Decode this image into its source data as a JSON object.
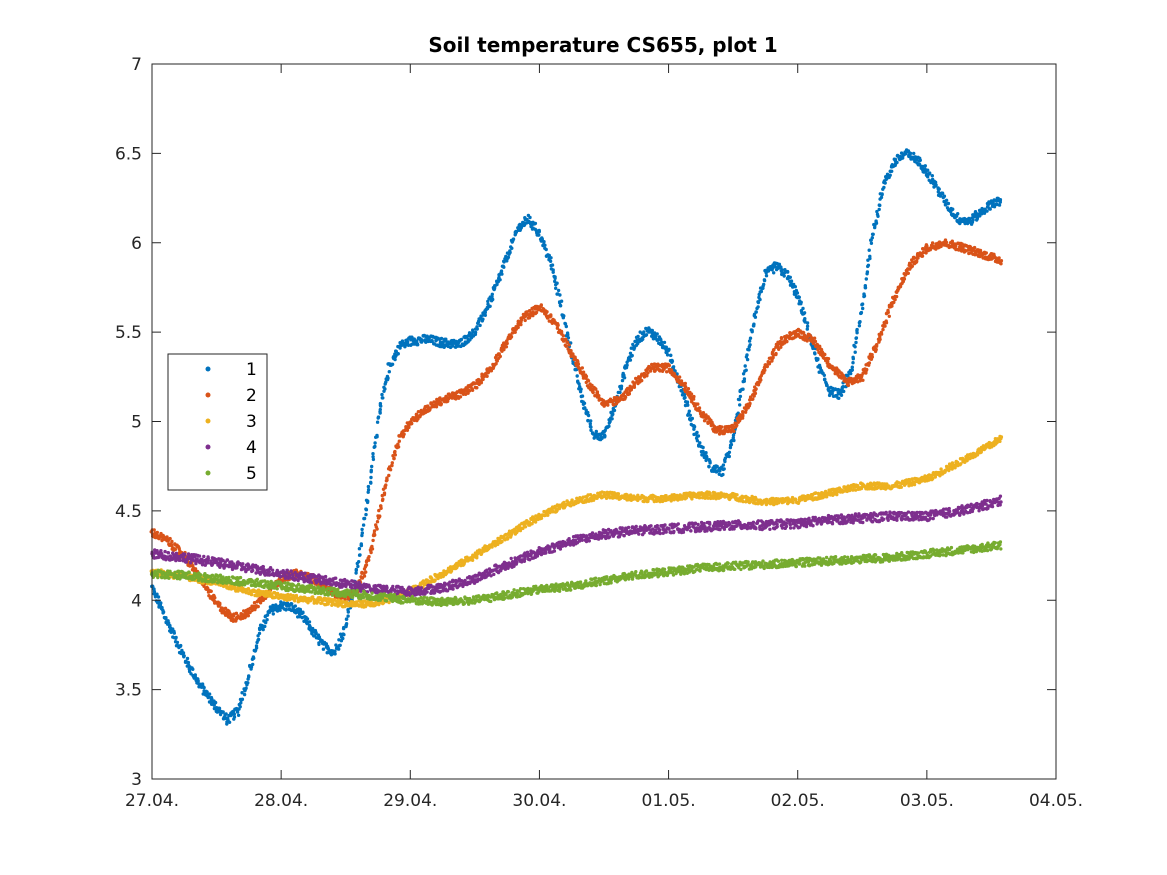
{
  "chart_data": {
    "type": "scatter",
    "title": "Soil temperature CS655, plot 1",
    "xlabel": "",
    "ylabel": "",
    "x_axis": {
      "kind": "date",
      "range": [
        "27.04.",
        "04.05."
      ],
      "tick_labels": [
        "27.04.",
        "28.04.",
        "29.04.",
        "30.04.",
        "01.05.",
        "02.05.",
        "03.05.",
        "04.05."
      ]
    },
    "y_axis": {
      "range": [
        3,
        7
      ],
      "tick_labels": [
        "3",
        "3.5",
        "4",
        "4.5",
        "5",
        "5.5",
        "6",
        "6.5",
        "7"
      ]
    },
    "grid": false,
    "legend": {
      "placement": "left",
      "entries": [
        "1",
        "2",
        "3",
        "4",
        "5"
      ]
    },
    "series": [
      {
        "name": "1",
        "color": "#0072BD",
        "points": [
          [
            "27.04. 00:00",
            4.07
          ],
          [
            "27.04. 03:00",
            3.87
          ],
          [
            "27.04. 06:00",
            3.68
          ],
          [
            "27.04. 09:00",
            3.52
          ],
          [
            "27.04. 12:00",
            3.4
          ],
          [
            "27.04. 14:00",
            3.33
          ],
          [
            "27.04. 16:00",
            3.38
          ],
          [
            "27.04. 18:00",
            3.58
          ],
          [
            "27.04. 20:00",
            3.82
          ],
          [
            "27.04. 22:00",
            3.94
          ],
          [
            "28.04. 00:00",
            3.97
          ],
          [
            "28.04. 02:00",
            3.96
          ],
          [
            "28.04. 04:00",
            3.91
          ],
          [
            "28.04. 06:00",
            3.82
          ],
          [
            "28.04. 08:00",
            3.74
          ],
          [
            "28.04. 10:00",
            3.71
          ],
          [
            "28.04. 12:00",
            3.85
          ],
          [
            "28.04. 14:00",
            4.15
          ],
          [
            "28.04. 16:00",
            4.55
          ],
          [
            "28.04. 18:00",
            5.0
          ],
          [
            "28.04. 20:00",
            5.3
          ],
          [
            "28.04. 22:00",
            5.42
          ],
          [
            "29.04. 00:00",
            5.45
          ],
          [
            "29.04. 03:00",
            5.46
          ],
          [
            "29.04. 06:00",
            5.44
          ],
          [
            "29.04. 09:00",
            5.43
          ],
          [
            "29.04. 12:00",
            5.5
          ],
          [
            "29.04. 15:00",
            5.68
          ],
          [
            "29.04. 18:00",
            5.92
          ],
          [
            "29.04. 20:00",
            6.08
          ],
          [
            "29.04. 22:00",
            6.13
          ],
          [
            "30.04. 00:00",
            6.05
          ],
          [
            "30.04. 02:00",
            5.9
          ],
          [
            "30.04. 04:00",
            5.65
          ],
          [
            "30.04. 06:00",
            5.38
          ],
          [
            "30.04. 08:00",
            5.12
          ],
          [
            "30.04. 10:00",
            4.93
          ],
          [
            "30.04. 12:00",
            4.92
          ],
          [
            "30.04. 14:00",
            5.08
          ],
          [
            "30.04. 16:00",
            5.3
          ],
          [
            "30.04. 18:00",
            5.45
          ],
          [
            "30.04. 20:00",
            5.51
          ],
          [
            "30.04. 22:00",
            5.47
          ],
          [
            "01.05. 00:00",
            5.38
          ],
          [
            "01.05. 02:00",
            5.22
          ],
          [
            "01.05. 04:00",
            5.03
          ],
          [
            "01.05. 06:00",
            4.85
          ],
          [
            "01.05. 08:00",
            4.74
          ],
          [
            "01.05. 10:00",
            4.72
          ],
          [
            "01.05. 12:00",
            4.9
          ],
          [
            "01.05. 14:00",
            5.25
          ],
          [
            "01.05. 16:00",
            5.6
          ],
          [
            "01.05. 18:00",
            5.82
          ],
          [
            "01.05. 20:00",
            5.87
          ],
          [
            "01.05. 22:00",
            5.82
          ],
          [
            "02.05. 00:00",
            5.7
          ],
          [
            "02.05. 02:00",
            5.5
          ],
          [
            "02.05. 04:00",
            5.3
          ],
          [
            "02.05. 06:00",
            5.17
          ],
          [
            "02.05. 08:00",
            5.15
          ],
          [
            "02.05. 10:00",
            5.3
          ],
          [
            "02.05. 12:00",
            5.65
          ],
          [
            "02.05. 14:00",
            6.05
          ],
          [
            "02.05. 16:00",
            6.33
          ],
          [
            "02.05. 18:00",
            6.45
          ],
          [
            "02.05. 20:00",
            6.5
          ],
          [
            "02.05. 22:00",
            6.47
          ],
          [
            "03.05. 00:00",
            6.4
          ],
          [
            "03.05. 02:00",
            6.3
          ],
          [
            "03.05. 04:00",
            6.2
          ],
          [
            "03.05. 06:00",
            6.13
          ],
          [
            "03.05. 08:00",
            6.12
          ],
          [
            "03.05. 10:00",
            6.17
          ],
          [
            "03.05. 12:00",
            6.22
          ],
          [
            "03.05. 14:00",
            6.23
          ]
        ]
      },
      {
        "name": "2",
        "color": "#D95319",
        "points": [
          [
            "27.04. 00:00",
            4.38
          ],
          [
            "27.04. 03:00",
            4.33
          ],
          [
            "27.04. 06:00",
            4.25
          ],
          [
            "27.04. 09:00",
            4.12
          ],
          [
            "27.04. 12:00",
            3.98
          ],
          [
            "27.04. 15:00",
            3.9
          ],
          [
            "27.04. 18:00",
            3.93
          ],
          [
            "27.04. 21:00",
            4.03
          ],
          [
            "28.04. 00:00",
            4.12
          ],
          [
            "28.04. 03:00",
            4.15
          ],
          [
            "28.04. 06:00",
            4.12
          ],
          [
            "28.04. 09:00",
            4.05
          ],
          [
            "28.04. 12:00",
            4.02
          ],
          [
            "28.04. 14:00",
            4.05
          ],
          [
            "28.04. 16:00",
            4.2
          ],
          [
            "28.04. 18:00",
            4.45
          ],
          [
            "28.04. 20:00",
            4.72
          ],
          [
            "28.04. 22:00",
            4.9
          ],
          [
            "29.04. 00:00",
            5.0
          ],
          [
            "29.04. 03:00",
            5.07
          ],
          [
            "29.04. 06:00",
            5.12
          ],
          [
            "29.04. 09:00",
            5.15
          ],
          [
            "29.04. 12:00",
            5.2
          ],
          [
            "29.04. 15:00",
            5.3
          ],
          [
            "29.04. 18:00",
            5.45
          ],
          [
            "29.04. 21:00",
            5.58
          ],
          [
            "30.04. 00:00",
            5.64
          ],
          [
            "30.04. 03:00",
            5.55
          ],
          [
            "30.04. 06:00",
            5.38
          ],
          [
            "30.04. 09:00",
            5.22
          ],
          [
            "30.04. 12:00",
            5.1
          ],
          [
            "30.04. 15:00",
            5.12
          ],
          [
            "30.04. 18:00",
            5.22
          ],
          [
            "30.04. 21:00",
            5.3
          ],
          [
            "01.05. 00:00",
            5.3
          ],
          [
            "01.05. 03:00",
            5.2
          ],
          [
            "01.05. 06:00",
            5.05
          ],
          [
            "01.05. 09:00",
            4.95
          ],
          [
            "01.05. 12:00",
            4.96
          ],
          [
            "01.05. 15:00",
            5.1
          ],
          [
            "01.05. 18:00",
            5.3
          ],
          [
            "01.05. 21:00",
            5.45
          ],
          [
            "02.05. 00:00",
            5.5
          ],
          [
            "02.05. 03:00",
            5.45
          ],
          [
            "02.05. 06:00",
            5.32
          ],
          [
            "02.05. 09:00",
            5.22
          ],
          [
            "02.05. 12:00",
            5.25
          ],
          [
            "02.05. 15:00",
            5.45
          ],
          [
            "02.05. 18:00",
            5.7
          ],
          [
            "02.05. 21:00",
            5.88
          ],
          [
            "03.05. 00:00",
            5.97
          ],
          [
            "03.05. 03:00",
            6.0
          ],
          [
            "03.05. 06:00",
            5.98
          ],
          [
            "03.05. 09:00",
            5.95
          ],
          [
            "03.05. 12:00",
            5.92
          ],
          [
            "03.05. 14:00",
            5.9
          ]
        ]
      },
      {
        "name": "3",
        "color": "#EDB120",
        "points": [
          [
            "27.04. 00:00",
            4.16
          ],
          [
            "27.04. 06:00",
            4.13
          ],
          [
            "27.04. 12:00",
            4.1
          ],
          [
            "27.04. 18:00",
            4.05
          ],
          [
            "28.04. 00:00",
            4.02
          ],
          [
            "28.04. 06:00",
            4.0
          ],
          [
            "28.04. 12:00",
            3.98
          ],
          [
            "28.04. 18:00",
            3.98
          ],
          [
            "29.04. 00:00",
            4.05
          ],
          [
            "29.04. 06:00",
            4.15
          ],
          [
            "29.04. 12:00",
            4.25
          ],
          [
            "29.04. 18:00",
            4.36
          ],
          [
            "30.04. 00:00",
            4.47
          ],
          [
            "30.04. 06:00",
            4.55
          ],
          [
            "30.04. 12:00",
            4.59
          ],
          [
            "30.04. 18:00",
            4.57
          ],
          [
            "01.05. 00:00",
            4.57
          ],
          [
            "01.05. 06:00",
            4.59
          ],
          [
            "01.05. 12:00",
            4.58
          ],
          [
            "01.05. 18:00",
            4.55
          ],
          [
            "02.05. 00:00",
            4.56
          ],
          [
            "02.05. 06:00",
            4.6
          ],
          [
            "02.05. 12:00",
            4.64
          ],
          [
            "02.05. 18:00",
            4.64
          ],
          [
            "03.05. 00:00",
            4.68
          ],
          [
            "03.05. 06:00",
            4.77
          ],
          [
            "03.05. 12:00",
            4.87
          ],
          [
            "03.05. 14:00",
            4.91
          ]
        ]
      },
      {
        "name": "4",
        "color": "#7E2F8E",
        "points": [
          [
            "27.04. 00:00",
            4.26
          ],
          [
            "27.04. 06:00",
            4.24
          ],
          [
            "27.04. 12:00",
            4.21
          ],
          [
            "27.04. 18:00",
            4.18
          ],
          [
            "28.04. 00:00",
            4.15
          ],
          [
            "28.04. 06:00",
            4.12
          ],
          [
            "28.04. 12:00",
            4.09
          ],
          [
            "28.04. 18:00",
            4.06
          ],
          [
            "29.04. 00:00",
            4.05
          ],
          [
            "29.04. 06:00",
            4.07
          ],
          [
            "29.04. 12:00",
            4.12
          ],
          [
            "29.04. 18:00",
            4.2
          ],
          [
            "30.04. 00:00",
            4.27
          ],
          [
            "30.04. 06:00",
            4.33
          ],
          [
            "30.04. 12:00",
            4.37
          ],
          [
            "30.04. 18:00",
            4.39
          ],
          [
            "01.05. 00:00",
            4.4
          ],
          [
            "01.05. 06:00",
            4.41
          ],
          [
            "01.05. 12:00",
            4.42
          ],
          [
            "01.05. 18:00",
            4.42
          ],
          [
            "02.05. 00:00",
            4.43
          ],
          [
            "02.05. 06:00",
            4.45
          ],
          [
            "02.05. 12:00",
            4.46
          ],
          [
            "02.05. 18:00",
            4.47
          ],
          [
            "03.05. 00:00",
            4.47
          ],
          [
            "03.05. 06:00",
            4.5
          ],
          [
            "03.05. 12:00",
            4.54
          ],
          [
            "03.05. 14:00",
            4.56
          ]
        ]
      },
      {
        "name": "5",
        "color": "#77AC30",
        "points": [
          [
            "27.04. 00:00",
            4.15
          ],
          [
            "27.04. 06:00",
            4.14
          ],
          [
            "27.04. 12:00",
            4.12
          ],
          [
            "27.04. 18:00",
            4.1
          ],
          [
            "28.04. 00:00",
            4.08
          ],
          [
            "28.04. 06:00",
            4.06
          ],
          [
            "28.04. 12:00",
            4.04
          ],
          [
            "28.04. 18:00",
            4.02
          ],
          [
            "29.04. 00:00",
            4.0
          ],
          [
            "29.04. 06:00",
            3.99
          ],
          [
            "29.04. 12:00",
            4.0
          ],
          [
            "29.04. 18:00",
            4.03
          ],
          [
            "30.04. 00:00",
            4.06
          ],
          [
            "30.04. 06:00",
            4.08
          ],
          [
            "30.04. 12:00",
            4.11
          ],
          [
            "30.04. 18:00",
            4.14
          ],
          [
            "01.05. 00:00",
            4.16
          ],
          [
            "01.05. 06:00",
            4.18
          ],
          [
            "01.05. 12:00",
            4.19
          ],
          [
            "01.05. 18:00",
            4.2
          ],
          [
            "02.05. 00:00",
            4.21
          ],
          [
            "02.05. 06:00",
            4.22
          ],
          [
            "02.05. 12:00",
            4.23
          ],
          [
            "02.05. 18:00",
            4.24
          ],
          [
            "03.05. 00:00",
            4.26
          ],
          [
            "03.05. 06:00",
            4.28
          ],
          [
            "03.05. 12:00",
            4.3
          ],
          [
            "03.05. 14:00",
            4.31
          ]
        ]
      }
    ]
  }
}
